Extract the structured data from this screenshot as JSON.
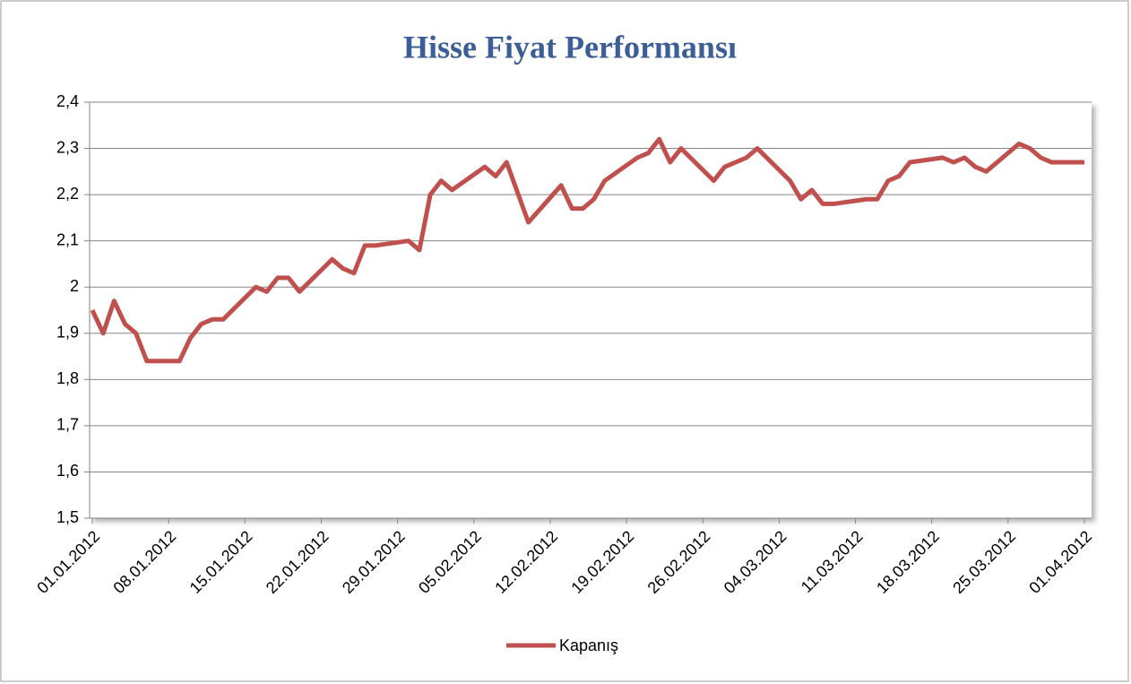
{
  "chart_data": {
    "type": "line",
    "title": "Hisse Fiyat Performansı",
    "x": [
      "01.01.2012",
      "02.01.2012",
      "03.01.2012",
      "04.01.2012",
      "05.01.2012",
      "06.01.2012",
      "09.01.2012",
      "10.01.2012",
      "11.01.2012",
      "12.01.2012",
      "13.01.2012",
      "16.01.2012",
      "17.01.2012",
      "18.01.2012",
      "19.01.2012",
      "20.01.2012",
      "23.01.2012",
      "24.01.2012",
      "25.01.2012",
      "26.01.2012",
      "27.01.2012",
      "30.01.2012",
      "31.01.2012",
      "01.02.2012",
      "02.02.2012",
      "03.02.2012",
      "06.02.2012",
      "07.02.2012",
      "08.02.2012",
      "10.02.2012",
      "13.02.2012",
      "14.02.2012",
      "15.02.2012",
      "16.02.2012",
      "17.02.2012",
      "20.02.2012",
      "21.02.2012",
      "22.02.2012",
      "23.02.2012",
      "24.02.2012",
      "27.02.2012",
      "28.02.2012",
      "01.03.2012",
      "02.03.2012",
      "05.03.2012",
      "06.03.2012",
      "07.03.2012",
      "08.03.2012",
      "09.03.2012",
      "12.03.2012",
      "13.03.2012",
      "14.03.2012",
      "15.03.2012",
      "16.03.2012",
      "19.03.2012",
      "20.03.2012",
      "21.03.2012",
      "22.03.2012",
      "23.03.2012",
      "26.03.2012",
      "27.03.2012",
      "28.03.2012",
      "29.03.2012",
      "30.03.2012",
      "01.04.2012"
    ],
    "series": [
      {
        "name": "Kapanış",
        "color": "#c0504d",
        "values": [
          1.95,
          1.9,
          1.97,
          1.92,
          1.9,
          1.84,
          1.84,
          1.89,
          1.92,
          1.93,
          1.93,
          2.0,
          1.99,
          2.02,
          2.02,
          1.99,
          2.06,
          2.04,
          2.03,
          2.09,
          2.09,
          2.1,
          2.08,
          2.2,
          2.23,
          2.21,
          2.26,
          2.24,
          2.27,
          2.14,
          2.22,
          2.17,
          2.17,
          2.19,
          2.23,
          2.28,
          2.29,
          2.32,
          2.27,
          2.3,
          2.23,
          2.26,
          2.28,
          2.3,
          2.23,
          2.19,
          2.21,
          2.18,
          2.18,
          2.19,
          2.19,
          2.23,
          2.24,
          2.27,
          2.28,
          2.27,
          2.28,
          2.26,
          2.25,
          2.31,
          2.3,
          2.28,
          2.27,
          2.27,
          2.27
        ]
      }
    ],
    "xlim": [
      "01.01.2012",
      "01.04.2012"
    ],
    "xticks": [
      "01.01.2012",
      "08.01.2012",
      "15.01.2012",
      "22.01.2012",
      "29.01.2012",
      "05.02.2012",
      "12.02.2012",
      "19.02.2012",
      "26.02.2012",
      "04.03.2012",
      "11.03.2012",
      "18.03.2012",
      "25.03.2012",
      "01.04.2012"
    ],
    "ylim": [
      1.5,
      2.4
    ],
    "yticks": [
      {
        "value": 1.5,
        "label": "1,5"
      },
      {
        "value": 1.6,
        "label": "1,6"
      },
      {
        "value": 1.7,
        "label": "1,7"
      },
      {
        "value": 1.8,
        "label": "1,8"
      },
      {
        "value": 1.9,
        "label": "1,9"
      },
      2,
      {
        "value": 2.1,
        "label": "2,1"
      },
      {
        "value": 2.2,
        "label": "2,2"
      },
      {
        "value": 2.3,
        "label": "2,3"
      },
      {
        "value": 2.4,
        "label": "2,4"
      }
    ],
    "grid": true,
    "legend": "bottom"
  }
}
